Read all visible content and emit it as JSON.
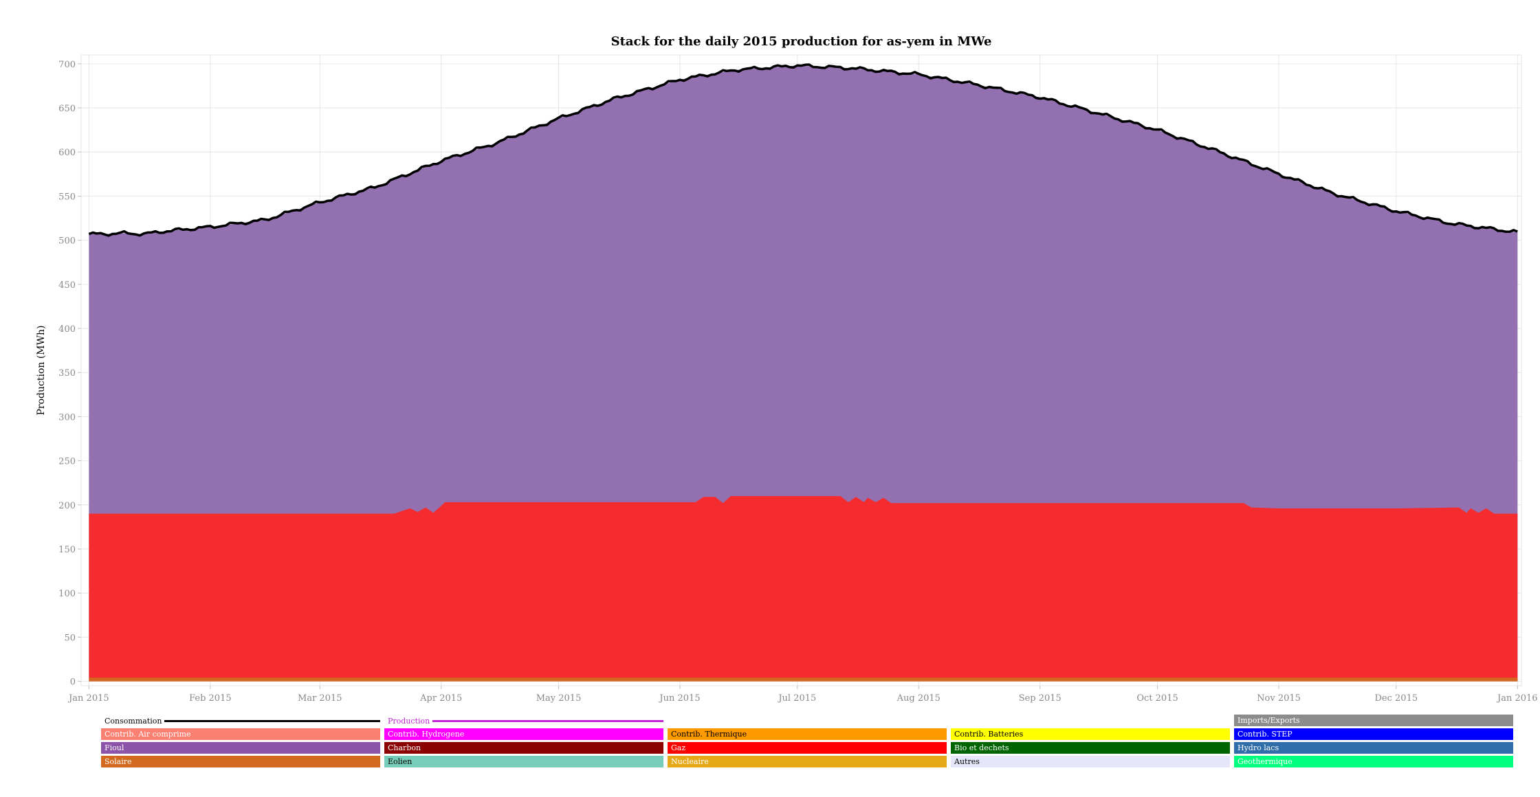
{
  "chart_data": {
    "type": "area",
    "stacked": true,
    "title": "Stack for the daily 2015 production for as-yem in MWe",
    "ylabel": "Production (MWh)",
    "xlabel": "",
    "ylim": [
      -5,
      710
    ],
    "xlim": [
      "2014-12-30",
      "2016-01-02"
    ],
    "grid": true,
    "x_ticks": [
      "Jan 2015",
      "Feb 2015",
      "Mar 2015",
      "Apr 2015",
      "May 2015",
      "Jun 2015",
      "Jul 2015",
      "Aug 2015",
      "Sep 2015",
      "Oct 2015",
      "Nov 2015",
      "Dec 2015",
      "Jan 2016"
    ],
    "y_ticks": [
      0,
      50,
      100,
      150,
      200,
      250,
      300,
      350,
      400,
      450,
      500,
      550,
      600,
      650,
      700
    ],
    "series": [
      {
        "name": "Solaire",
        "color": "#d2691e",
        "points": [
          [
            "2015-01-01",
            4
          ],
          [
            "2015-07-01",
            4
          ],
          [
            "2016-01-01",
            4
          ]
        ]
      },
      {
        "name": "Gaz",
        "color": "#f52c2f",
        "points": [
          [
            "2015-01-01",
            190
          ],
          [
            "2015-03-20",
            190
          ],
          [
            "2015-03-24",
            196
          ],
          [
            "2015-03-26",
            192
          ],
          [
            "2015-03-28",
            197
          ],
          [
            "2015-03-30",
            191
          ],
          [
            "2015-04-02",
            203
          ],
          [
            "2015-05-01",
            203
          ],
          [
            "2015-06-01",
            203
          ],
          [
            "2015-06-05",
            203
          ],
          [
            "2015-06-07",
            209
          ],
          [
            "2015-06-10",
            209
          ],
          [
            "2015-06-12",
            202
          ],
          [
            "2015-06-14",
            210
          ],
          [
            "2015-07-01",
            210
          ],
          [
            "2015-07-12",
            210
          ],
          [
            "2015-07-14",
            203
          ],
          [
            "2015-07-16",
            209
          ],
          [
            "2015-07-18",
            203
          ],
          [
            "2015-07-19",
            208
          ],
          [
            "2015-07-21",
            203
          ],
          [
            "2015-07-23",
            208
          ],
          [
            "2015-07-25",
            202
          ],
          [
            "2015-08-01",
            202
          ],
          [
            "2015-09-01",
            202
          ],
          [
            "2015-10-01",
            202
          ],
          [
            "2015-10-23",
            202
          ],
          [
            "2015-10-25",
            197
          ],
          [
            "2015-11-01",
            196
          ],
          [
            "2015-12-01",
            196
          ],
          [
            "2015-12-17",
            197
          ],
          [
            "2015-12-19",
            191
          ],
          [
            "2015-12-20",
            196
          ],
          [
            "2015-12-22",
            191
          ],
          [
            "2015-12-24",
            196
          ],
          [
            "2015-12-26",
            190
          ],
          [
            "2016-01-01",
            190
          ]
        ]
      },
      {
        "name": "Fioul",
        "color": "#9370b0",
        "points": [
          [
            "2015-01-01",
            507
          ],
          [
            "2015-01-05",
            507
          ],
          [
            "2015-01-10",
            508
          ],
          [
            "2015-01-15",
            507
          ],
          [
            "2015-01-20",
            510
          ],
          [
            "2015-02-01",
            515
          ],
          [
            "2015-02-15",
            523
          ],
          [
            "2015-03-01",
            543
          ],
          [
            "2015-03-15",
            560
          ],
          [
            "2015-04-01",
            590
          ],
          [
            "2015-04-15",
            610
          ],
          [
            "2015-05-01",
            638
          ],
          [
            "2015-05-15",
            660
          ],
          [
            "2015-06-01",
            682
          ],
          [
            "2015-06-15",
            693
          ],
          [
            "2015-07-01",
            698
          ],
          [
            "2015-07-15",
            695
          ],
          [
            "2015-08-01",
            688
          ],
          [
            "2015-08-15",
            677
          ],
          [
            "2015-09-01",
            662
          ],
          [
            "2015-09-15",
            645
          ],
          [
            "2015-10-01",
            625
          ],
          [
            "2015-10-15",
            603
          ],
          [
            "2015-11-01",
            575
          ],
          [
            "2015-11-15",
            553
          ],
          [
            "2015-12-01",
            533
          ],
          [
            "2015-12-15",
            519
          ],
          [
            "2016-01-01",
            509
          ]
        ]
      },
      {
        "name": "Consommation",
        "color": "#000000",
        "style": "line",
        "points": [
          [
            "2015-01-01",
            507
          ],
          [
            "2015-01-05",
            507
          ],
          [
            "2015-01-10",
            508
          ],
          [
            "2015-01-15",
            507
          ],
          [
            "2015-01-20",
            510
          ],
          [
            "2015-02-01",
            515
          ],
          [
            "2015-02-15",
            523
          ],
          [
            "2015-03-01",
            543
          ],
          [
            "2015-03-15",
            560
          ],
          [
            "2015-04-01",
            590
          ],
          [
            "2015-04-15",
            610
          ],
          [
            "2015-05-01",
            638
          ],
          [
            "2015-05-15",
            660
          ],
          [
            "2015-06-01",
            682
          ],
          [
            "2015-06-15",
            693
          ],
          [
            "2015-07-01",
            698
          ],
          [
            "2015-07-15",
            695
          ],
          [
            "2015-08-01",
            688
          ],
          [
            "2015-08-15",
            677
          ],
          [
            "2015-09-01",
            662
          ],
          [
            "2015-09-15",
            645
          ],
          [
            "2015-10-01",
            625
          ],
          [
            "2015-10-15",
            603
          ],
          [
            "2015-11-01",
            575
          ],
          [
            "2015-11-15",
            553
          ],
          [
            "2015-12-01",
            533
          ],
          [
            "2015-12-15",
            519
          ],
          [
            "2016-01-01",
            509
          ]
        ]
      }
    ],
    "legend": {
      "placement": "bottom",
      "line_items": [
        {
          "name": "Consommation",
          "color": "#000000",
          "text_color": "#000000"
        },
        {
          "name": "Production",
          "color": "#c026d3",
          "text_color": "#c026d3"
        }
      ],
      "rows": [
        [
          null,
          null,
          null,
          null,
          {
            "name": "Imports/Exports",
            "color": "#8c8c8c",
            "text_color": "#ffffff"
          }
        ],
        [
          {
            "name": "Contrib. Air comprime",
            "color": "#fa8072",
            "text_color": "#ffffff"
          },
          {
            "name": "Contrib. Hydrogene",
            "color": "#ff00ff",
            "text_color": "#ffffff"
          },
          {
            "name": "Contrib. Thermique",
            "color": "#ff9900",
            "text_color": "#000000"
          },
          {
            "name": "Contrib. Batteries",
            "color": "#ffff00",
            "text_color": "#000000"
          },
          {
            "name": "Contrib. STEP",
            "color": "#0000ff",
            "text_color": "#ffffff"
          }
        ],
        [
          {
            "name": "Fioul",
            "color": "#8b54a8",
            "text_color": "#ffffff"
          },
          {
            "name": "Charbon",
            "color": "#8b0000",
            "text_color": "#ffffff"
          },
          {
            "name": "Gaz",
            "color": "#ff0000",
            "text_color": "#ffffff"
          },
          {
            "name": "Bio et dechets",
            "color": "#006400",
            "text_color": "#ffffff"
          },
          {
            "name": "Hydro lacs",
            "color": "#2f6ea8",
            "text_color": "#ffffff"
          }
        ],
        [
          {
            "name": "Solaire",
            "color": "#d2691e",
            "text_color": "#ffffff"
          },
          {
            "name": "Eolien",
            "color": "#76cdb9",
            "text_color": "#000000"
          },
          {
            "name": "Nucleaire",
            "color": "#e6a817",
            "text_color": "#ffffff"
          },
          {
            "name": "Autres",
            "color": "#e6e6fa",
            "text_color": "#000000"
          },
          {
            "name": "Geothermique",
            "color": "#00ff7f",
            "text_color": "#ffffff"
          }
        ]
      ]
    }
  }
}
